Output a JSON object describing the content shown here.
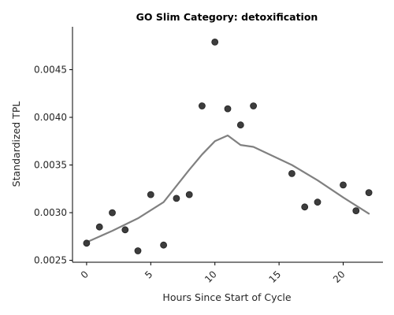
{
  "chart_data": {
    "type": "scatter",
    "title": "GO Slim Category: detoxification",
    "xlabel": "Hours Since Start of Cycle",
    "ylabel": "Standardized TPL",
    "xlim": [
      -1.1,
      23.1
    ],
    "ylim": [
      0.00248,
      0.00495
    ],
    "x_ticks": [
      0,
      5,
      10,
      15,
      20
    ],
    "x_tick_labels": [
      "0",
      "5",
      "10",
      "15",
      "20"
    ],
    "y_ticks": [
      0.0025,
      0.003,
      0.0035,
      0.004,
      0.0045
    ],
    "y_tick_labels": [
      "0.0025",
      "0.0030",
      "0.0035",
      "0.0040",
      "0.0045"
    ],
    "grid": false,
    "series": [
      {
        "kind": "scatter",
        "color": "#333333",
        "x": [
          0,
          1,
          2,
          3,
          4,
          5,
          6,
          7,
          8,
          9,
          10,
          11,
          12,
          13,
          16,
          17,
          18,
          20,
          21,
          22
        ],
        "y": [
          0.00268,
          0.00285,
          0.003,
          0.00282,
          0.0026,
          0.00319,
          0.00266,
          0.00315,
          0.00319,
          0.00412,
          0.00479,
          0.00409,
          0.00392,
          0.00412,
          0.00341,
          0.00306,
          0.00311,
          0.00329,
          0.00302,
          0.00321
        ]
      },
      {
        "kind": "line",
        "color": "#808080",
        "x": [
          0,
          2,
          4,
          6,
          8,
          9,
          10,
          11,
          12,
          13,
          16,
          18,
          20,
          22
        ],
        "y": [
          0.00269,
          0.00281,
          0.00294,
          0.00311,
          0.00345,
          0.00361,
          0.00375,
          0.00381,
          0.00371,
          0.00369,
          0.0035,
          0.00334,
          0.00316,
          0.00299
        ]
      }
    ]
  }
}
